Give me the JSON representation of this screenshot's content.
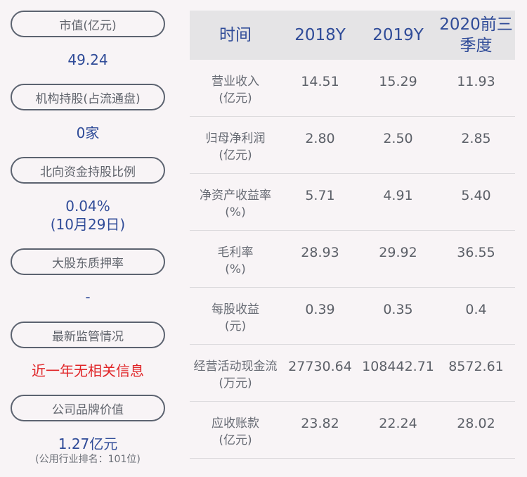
{
  "left": [
    {
      "label": "市值(亿元)",
      "value": "49.24"
    },
    {
      "label": "机构持股(占流通盘)",
      "value": "0家"
    },
    {
      "label": "北向资金持股比例",
      "value": "0.04%",
      "value2": "(10月29日)"
    },
    {
      "label": "大股东质押率",
      "value": "-"
    },
    {
      "label": "最新监管情况",
      "value": "近一年无相关信息"
    },
    {
      "label": "公司品牌价值",
      "value": "1.27亿元",
      "note": "(公用行业排名：101位)"
    }
  ],
  "table": {
    "headers": [
      "时间",
      "2018Y",
      "2019Y",
      "2020前三季度"
    ],
    "rows": [
      {
        "label": "营业收入",
        "unit": "(亿元)",
        "values": [
          "14.51",
          "15.29",
          "11.93"
        ]
      },
      {
        "label": "归母净利润",
        "unit": "(亿元)",
        "values": [
          "2.80",
          "2.50",
          "2.85"
        ]
      },
      {
        "label": "净资产收益率",
        "unit": "(%)",
        "values": [
          "5.71",
          "4.91",
          "5.40"
        ]
      },
      {
        "label": "毛利率",
        "unit": "(%)",
        "values": [
          "28.93",
          "29.92",
          "36.55"
        ]
      },
      {
        "label": "每股收益",
        "unit": "(元)",
        "values": [
          "0.39",
          "0.35",
          "0.4"
        ]
      },
      {
        "label": "经营活动现金流",
        "unit": "(万元)",
        "values": [
          "27730.64",
          "108442.71",
          "8572.61"
        ]
      },
      {
        "label": "应收账款",
        "unit": "(亿元)",
        "values": [
          "23.82",
          "22.24",
          "28.02"
        ]
      }
    ]
  },
  "colors": {
    "accent": "#2f4b98",
    "alert": "#e02427",
    "header_bg": "#e5e4e6",
    "background": "#f8f4f6"
  }
}
